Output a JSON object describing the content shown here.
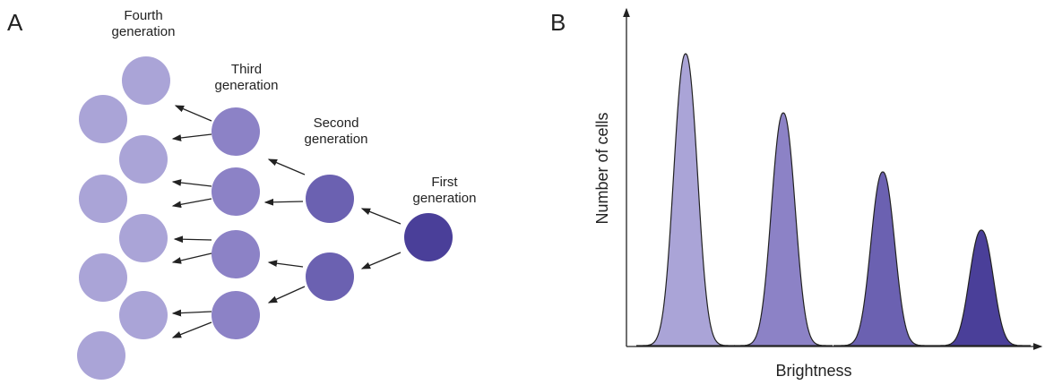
{
  "panels": {
    "a": {
      "label": "A",
      "generations": [
        {
          "lines": [
            "Fourth",
            "generation"
          ]
        },
        {
          "lines": [
            "Third",
            "generation"
          ]
        },
        {
          "lines": [
            "Second",
            "generation"
          ]
        },
        {
          "lines": [
            "First",
            "generation"
          ]
        }
      ]
    },
    "b": {
      "label": "B",
      "y_axis_label": "Number of cells",
      "x_axis_label": "Brightness"
    }
  }
}
